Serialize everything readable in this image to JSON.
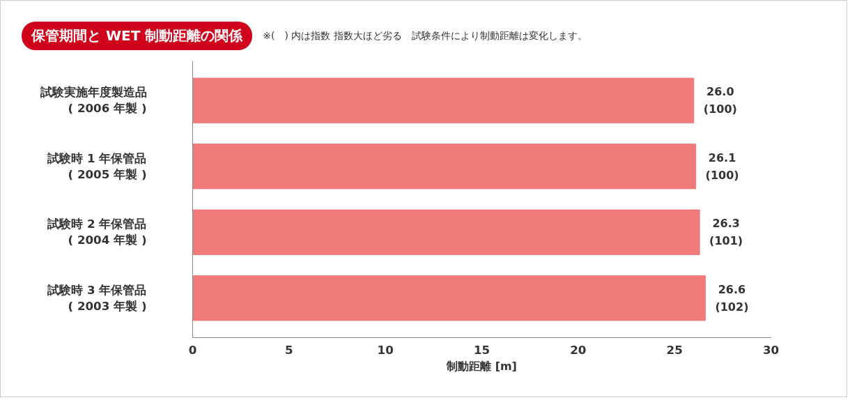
{
  "chart_data": {
    "type": "bar",
    "orientation": "horizontal",
    "title": "保管期間と WET 制動距離の関係",
    "annotations": [
      "※(　) 内は指数 指数大ほど劣る　試験条件により制動距離は変化します。"
    ],
    "categories": [
      "試験実施年度製造品\n( 2006 年製 )",
      "試験時 1 年保管品\n( 2005 年製 )",
      "試験時 2 年保管品\n( 2004 年製 )",
      "試験時 3 年保管品\n( 2003 年製 )"
    ],
    "values": [
      26.0,
      26.1,
      26.3,
      26.6
    ],
    "value_labels": [
      "26.0\n(100)",
      "26.1\n(100)",
      "26.3\n(101)",
      "26.6\n(102)"
    ],
    "color": "#f07a7a",
    "xlabel": "制動距離 [m]",
    "xlim": [
      0,
      30
    ],
    "xticks": [
      0,
      5,
      10,
      15,
      20,
      25,
      30
    ],
    "grid": false
  }
}
